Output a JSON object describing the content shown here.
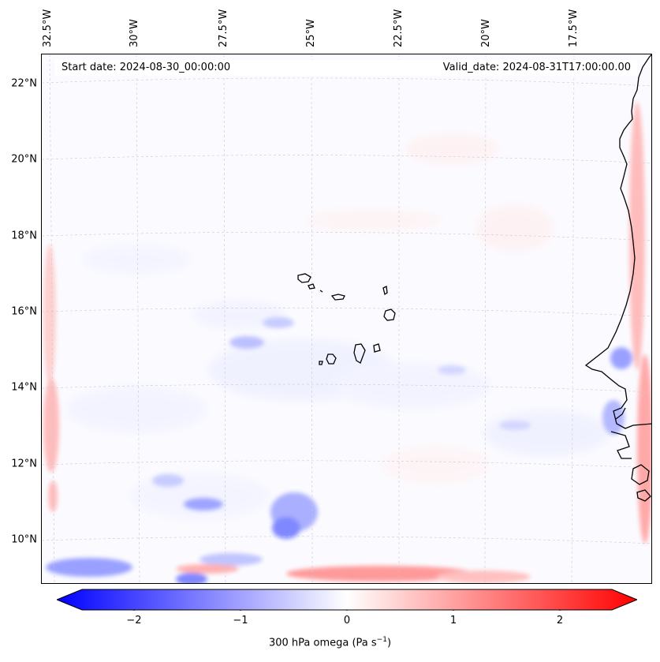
{
  "map": {
    "start_date": "Start date: 2024-08-30_00:00:00",
    "valid_date": "Valid_date: 2024-08-31T17:00:00.00",
    "lat_labels": [
      "22°N",
      "20°N",
      "18°N",
      "16°N",
      "14°N",
      "12°N",
      "10°N"
    ],
    "lon_labels": [
      "32.5°W",
      "30°W",
      "27.5°W",
      "25°W",
      "22.5°W",
      "20°W",
      "17.5°W"
    ],
    "region": "Cabo Verde islands and West African coast",
    "field": "300 hPa omega"
  },
  "colorbar": {
    "ticks": [
      "−2",
      "−1",
      "0",
      "1",
      "2"
    ],
    "tick_values": [
      -2,
      -1,
      0,
      1,
      2
    ],
    "range": [
      -2.7,
      2.7
    ],
    "label": "300 hPa omega (Pa s−1)",
    "label_main": "300 hPa omega (Pa s",
    "label_sup": "−1",
    "label_end": ")",
    "colors": {
      "negative": "#0000ff",
      "zero": "#ffffff",
      "positive": "#ff0000"
    }
  }
}
